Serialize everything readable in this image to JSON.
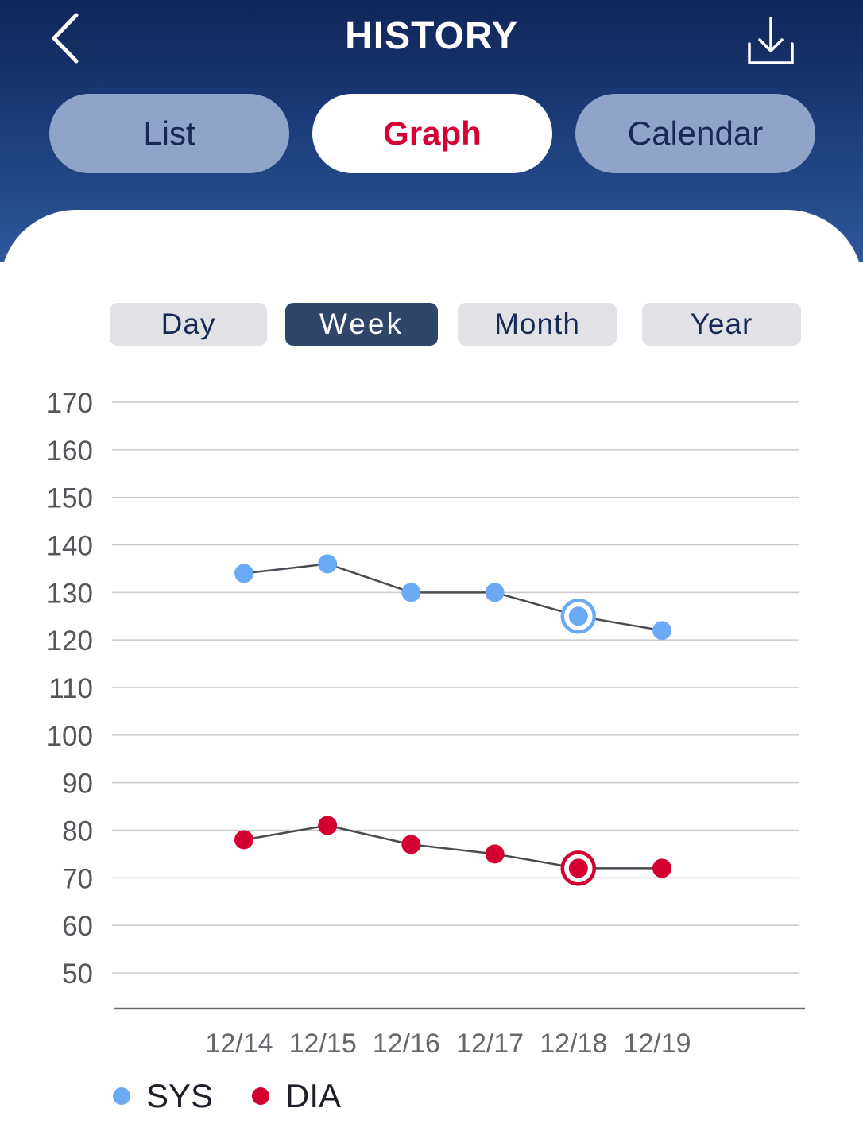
{
  "header": {
    "title": "HISTORY"
  },
  "tabs": [
    {
      "label": "List",
      "active": false
    },
    {
      "label": "Graph",
      "active": true
    },
    {
      "label": "Calendar",
      "active": false
    }
  ],
  "ranges": [
    {
      "label": "Day",
      "active": false
    },
    {
      "label": "Week",
      "active": true
    },
    {
      "label": "Month",
      "active": false
    },
    {
      "label": "Year",
      "active": false
    }
  ],
  "colors": {
    "sys": "#6aaaf5",
    "dia": "#d50032",
    "header": "#1b3b78",
    "active_tab_text": "#d50032"
  },
  "chart_data": {
    "type": "line",
    "x": [
      "12/14",
      "12/15",
      "12/16",
      "12/17",
      "12/18",
      "12/19"
    ],
    "ylim": [
      50,
      170
    ],
    "yticks": [
      170,
      160,
      150,
      140,
      130,
      120,
      110,
      100,
      90,
      80,
      70,
      60,
      50
    ],
    "grid": true,
    "selected_x": "12/18",
    "legend_position": "bottom-left",
    "series": [
      {
        "name": "SYS",
        "values": [
          134,
          136,
          130,
          130,
          125,
          122
        ]
      },
      {
        "name": "DIA",
        "values": [
          78,
          81,
          77,
          75,
          72,
          72
        ]
      }
    ]
  }
}
